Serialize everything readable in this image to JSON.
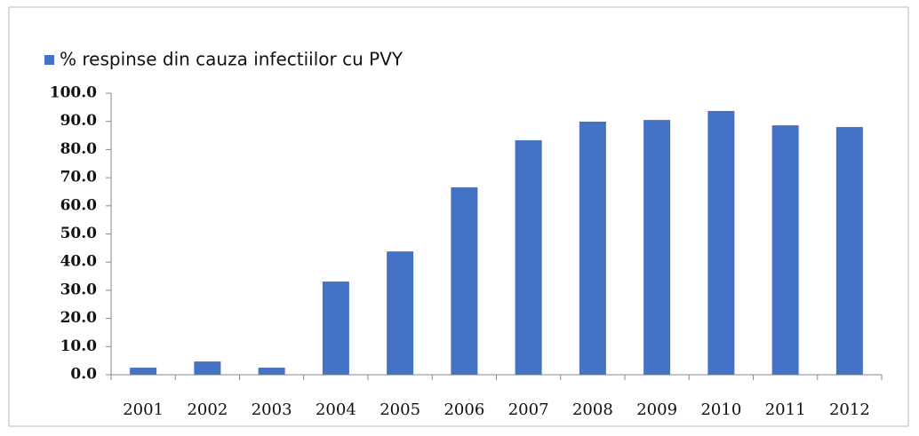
{
  "chart_data": {
    "type": "bar",
    "legend": "% respinse din cauza infectiilor cu PVY",
    "categories": [
      "2001",
      "2002",
      "2003",
      "2004",
      "2005",
      "2006",
      "2007",
      "2008",
      "2009",
      "2010",
      "2011",
      "2012"
    ],
    "series": [
      {
        "name": "% respinse din cauza infectiilor cu PVY",
        "color": "#4472c4",
        "values": [
          2.5,
          4.7,
          2.5,
          33.1,
          43.8,
          66.6,
          83.3,
          89.9,
          90.5,
          93.7,
          88.6,
          88.0
        ]
      }
    ],
    "ylim": [
      0,
      100
    ],
    "yticks": [
      {
        "value": 0,
        "label": "0.0"
      },
      {
        "value": 10,
        "label": "10.0"
      },
      {
        "value": 20,
        "label": "20.0"
      },
      {
        "value": 30,
        "label": "30.0"
      },
      {
        "value": 40,
        "label": "40.0"
      },
      {
        "value": 50,
        "label": "50.0"
      },
      {
        "value": 60,
        "label": "60.0"
      },
      {
        "value": 70,
        "label": "70.0"
      },
      {
        "value": 80,
        "label": "80.0"
      },
      {
        "value": 90,
        "label": "90.0"
      },
      {
        "value": 100,
        "label": "100.0"
      }
    ],
    "grid": false,
    "legend_position": "top-left"
  }
}
